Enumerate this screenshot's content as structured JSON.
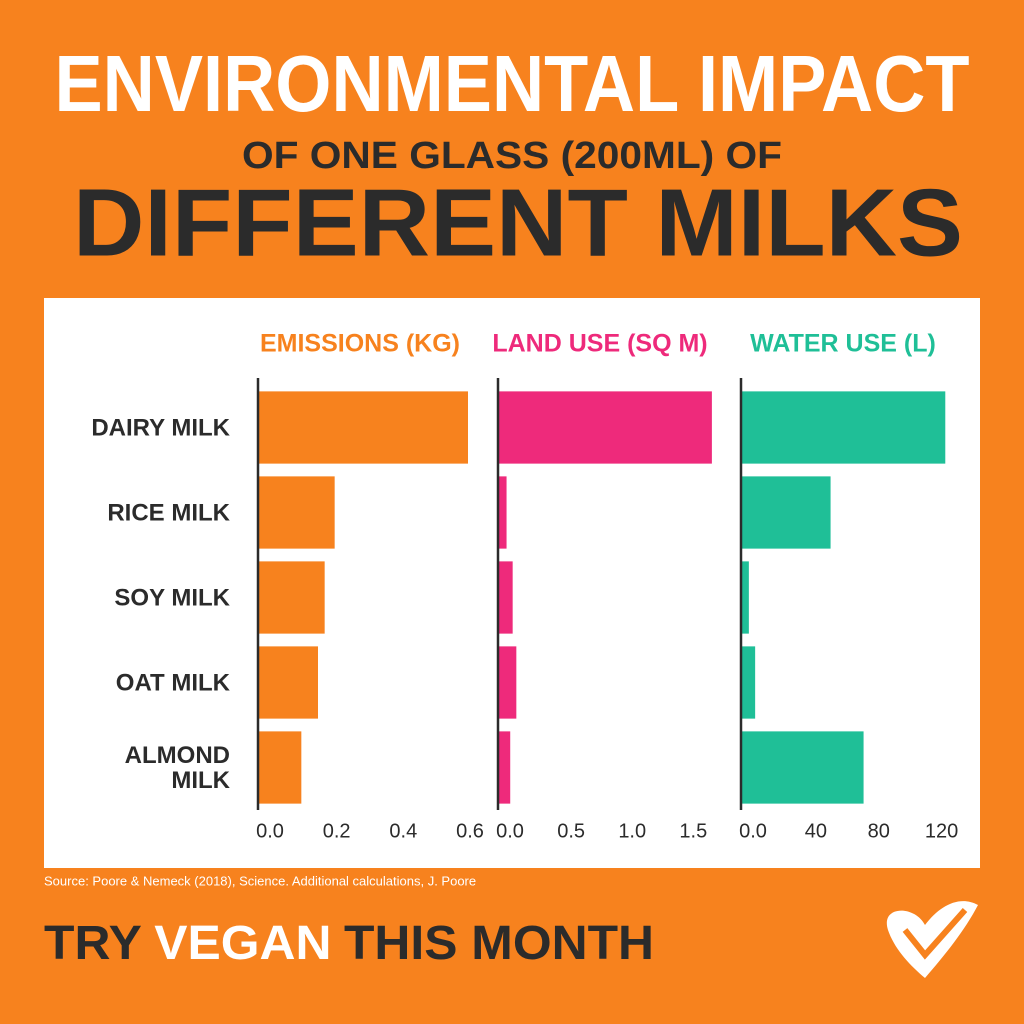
{
  "chart_data": {
    "type": "bar",
    "orientation": "horizontal",
    "title": "ENVIRONMENTAL IMPACT",
    "subtitle": "OF ONE GLASS (200ML) OF",
    "heading": "DIFFERENT MILKS",
    "categories": [
      "DAIRY MILK",
      "RICE MILK",
      "SOY MILK",
      "OAT MILK",
      "ALMOND MILK"
    ],
    "series": [
      {
        "name": "EMISSIONS (KG)",
        "color": "#f7821e",
        "values": [
          0.63,
          0.23,
          0.2,
          0.18,
          0.13
        ],
        "xlim": [
          0,
          0.66
        ],
        "xticks": [
          {
            "value": 0,
            "label": "0.0"
          },
          0.2,
          0.4,
          0.6
        ]
      },
      {
        "name": "LAND USE (SQ M)",
        "color": "#ee2a7b",
        "values": [
          1.75,
          0.07,
          0.12,
          0.15,
          0.1
        ],
        "xlim": [
          0,
          1.8
        ],
        "xticks": [
          {
            "value": 0,
            "label": "0.0"
          },
          0.5,
          {
            "value": 1,
            "label": "1.0"
          },
          1.5
        ]
      },
      {
        "name": "WATER USE (L)",
        "color": "#1fbf97",
        "values": [
          130,
          57,
          5,
          9,
          78
        ],
        "xlim": [
          0,
          140
        ],
        "xticks": [
          {
            "value": 0,
            "label": "0.0"
          },
          40,
          80,
          120
        ]
      }
    ],
    "source": "Source: Poore & Nemeck (2018), Science. Additional calculations, J. Poore"
  },
  "footer": [
    "TRY",
    "VEGAN",
    "THIS MONTH"
  ]
}
